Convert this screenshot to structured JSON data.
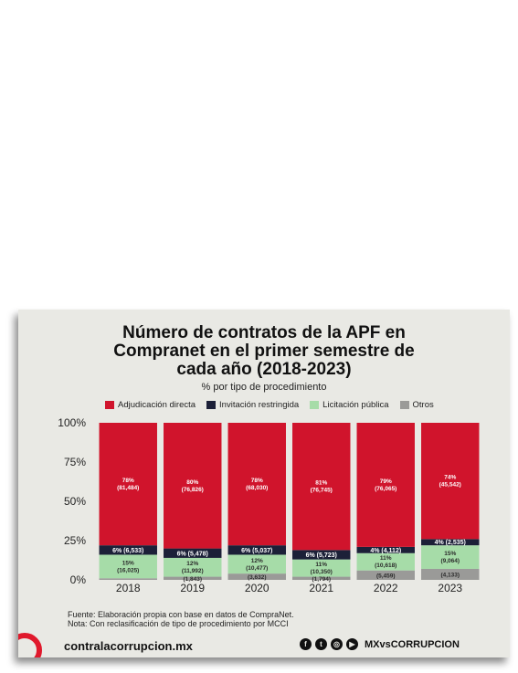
{
  "title_lines": [
    "Número de contratos de la APF en",
    "Compranet en el primer semestre de",
    "cada año (2018-2023)"
  ],
  "subtitle": "% por tipo de procedimiento",
  "footnote": {
    "source": "Fuente: Elaboración propia con base en datos de CompraNet.",
    "note": "Nota: Con reclasificación de tipo de procedimiento por MCCI"
  },
  "footer": {
    "site": "contralacorrupcion.mx",
    "handle": "MXvsCORRUPCION",
    "social_icons": [
      "facebook-icon",
      "twitter-icon",
      "instagram-icon",
      "youtube-icon"
    ]
  },
  "chart_data": {
    "type": "bar",
    "stacked": true,
    "categories": [
      "2018",
      "2019",
      "2020",
      "2021",
      "2022",
      "2023"
    ],
    "ylim": [
      0,
      100
    ],
    "yticks": [
      "0%",
      "25%",
      "50%",
      "75%",
      "100%"
    ],
    "legend_position": "top",
    "series": [
      {
        "name": "Adjudicación directa",
        "color": "#d0142c",
        "values": [
          78,
          80,
          78,
          81,
          79,
          74
        ],
        "labels": [
          "78%",
          "80%",
          "78%",
          "81%",
          "79%",
          "74%"
        ],
        "counts": [
          "(81,484)",
          "(76,826)",
          "(68,030)",
          "(76,745)",
          "(76,065)",
          "(45,542)"
        ]
      },
      {
        "name": "Invitación restringida",
        "color": "#1c2038",
        "values": [
          6,
          6,
          6,
          6,
          4,
          4
        ],
        "labels": [
          "6%",
          "6%",
          "6%",
          "6%",
          "4%",
          "4%"
        ],
        "counts": [
          "(6,533)",
          "(5,478)",
          "(5,037)",
          "(5,723)",
          "(4,112)",
          "(2,535)"
        ]
      },
      {
        "name": "Licitación pública",
        "color": "#a6dca8",
        "values": [
          15,
          12,
          12,
          11,
          11,
          15
        ],
        "labels": [
          "15%",
          "12%",
          "12%",
          "11%",
          "11%",
          "15%"
        ],
        "counts": [
          "(16,025)",
          "(11,992)",
          "(10,477)",
          "(10,350)",
          "(10,618)",
          "(9,064)"
        ]
      },
      {
        "name": "Otros",
        "color": "#9a9a98",
        "values": [
          1,
          2,
          4,
          2,
          6,
          7
        ],
        "labels": [
          "",
          "",
          "",
          "",
          "",
          ""
        ],
        "counts": [
          "",
          "(1,843)",
          "(3,632)",
          "(1,794)",
          "(5,459)",
          "(4,133)"
        ]
      }
    ]
  }
}
